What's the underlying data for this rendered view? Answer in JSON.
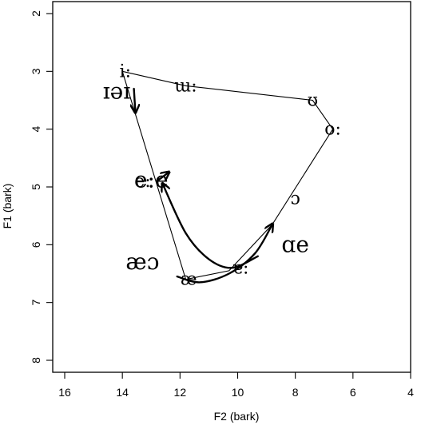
{
  "chart_data": {
    "type": "scatter",
    "xlabel": "F2 (bark)",
    "ylabel": "F1 (bark)",
    "xlim": [
      16,
      4
    ],
    "ylim": [
      8,
      2
    ],
    "x_reversed": true,
    "y_reversed": true,
    "xticks": [
      16,
      14,
      12,
      10,
      8,
      6,
      4
    ],
    "yticks": [
      2,
      3,
      4,
      5,
      6,
      7,
      8
    ],
    "grid": false,
    "vowel_points": [
      {
        "label": "i:",
        "x": 13.9,
        "y": 3.0
      },
      {
        "label": "ɯ:",
        "x": 11.8,
        "y": 3.25
      },
      {
        "label": "ʊ",
        "x": 7.4,
        "y": 3.5
      },
      {
        "label": "o:",
        "x": 6.7,
        "y": 4.0
      },
      {
        "label": "e:",
        "x": 13.3,
        "y": 4.9
      },
      {
        "label": "ɔ",
        "x": 8.0,
        "y": 5.2
      },
      {
        "label": "ɐ:",
        "x": 9.9,
        "y": 6.4
      },
      {
        "label": "æ",
        "x": 11.7,
        "y": 6.6
      }
    ],
    "vowel_polygon": [
      {
        "x": 14.0,
        "y": 3.0
      },
      {
        "x": 11.8,
        "y": 3.25
      },
      {
        "x": 7.4,
        "y": 3.5
      },
      {
        "x": 6.7,
        "y": 4.0
      },
      {
        "x": 8.8,
        "y": 5.65
      },
      {
        "x": 10.3,
        "y": 6.45
      },
      {
        "x": 11.8,
        "y": 6.6
      },
      {
        "x": 14.0,
        "y": 3.0
      }
    ],
    "diphthongs": [
      {
        "label": "ɪə",
        "points": [
          {
            "x": 13.6,
            "y": 3.3
          },
          {
            "x": 13.55,
            "y": 3.7
          }
        ]
      },
      {
        "label": "eɪ",
        "points": [
          {
            "x": 12.8,
            "y": 4.9
          },
          {
            "x": 12.4,
            "y": 4.75
          }
        ]
      },
      {
        "label": "æɔ",
        "points": [
          {
            "x": 12.1,
            "y": 6.55
          },
          {
            "x": 11.3,
            "y": 6.65
          },
          {
            "x": 10.3,
            "y": 6.5
          },
          {
            "x": 9.4,
            "y": 6.15
          },
          {
            "x": 8.8,
            "y": 5.65
          }
        ]
      },
      {
        "label": "ɑe",
        "points": [
          {
            "x": 9.3,
            "y": 6.2
          },
          {
            "x": 10.2,
            "y": 6.4
          },
          {
            "x": 11.0,
            "y": 6.25
          },
          {
            "x": 11.8,
            "y": 5.8
          },
          {
            "x": 12.6,
            "y": 4.95
          }
        ]
      }
    ],
    "annotations": [
      {
        "text": "ɪəɪ",
        "x": 14.2,
        "y": 3.35
      },
      {
        "text": "e:e",
        "x": 13.0,
        "y": 4.88
      },
      {
        "text": "æɔ",
        "x": 13.3,
        "y": 6.3
      },
      {
        "text": "ɑe",
        "x": 8.0,
        "y": 6.0
      }
    ]
  }
}
